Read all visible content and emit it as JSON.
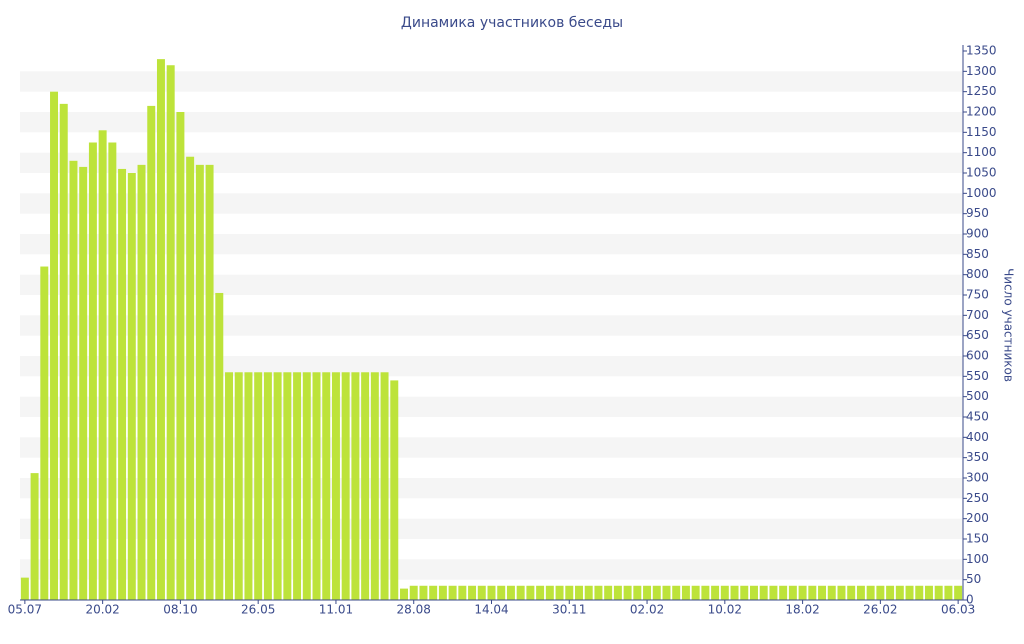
{
  "chart_data": {
    "type": "bar",
    "title": "Динамика участников беседы",
    "y_axis_label": "Число участников",
    "color": "#bde33a",
    "grid": "bands",
    "band_color": "#f5f5f5",
    "y_axis_side": "right",
    "categories": [
      "05.07",
      null,
      null,
      null,
      null,
      null,
      null,
      null,
      "20.02",
      null,
      null,
      null,
      null,
      null,
      null,
      null,
      "08.10",
      null,
      null,
      null,
      null,
      null,
      null,
      null,
      "26.05",
      null,
      null,
      null,
      null,
      null,
      null,
      null,
      "11.01",
      null,
      null,
      null,
      null,
      null,
      null,
      null,
      "28.08",
      null,
      null,
      null,
      null,
      null,
      null,
      null,
      "14.04",
      null,
      null,
      null,
      null,
      null,
      null,
      null,
      "30.11",
      null,
      null,
      null,
      null,
      null,
      null,
      null,
      "02.02",
      null,
      null,
      null,
      null,
      null,
      null,
      null,
      "10.02",
      null,
      null,
      null,
      null,
      null,
      null,
      null,
      "18.02",
      null,
      null,
      null,
      null,
      null,
      null,
      null,
      "26.02",
      null,
      null,
      null,
      null,
      null,
      null,
      null,
      "06.03"
    ],
    "values": [
      55,
      312,
      820,
      1250,
      1220,
      1080,
      1065,
      1125,
      1155,
      1125,
      1060,
      1050,
      1070,
      1215,
      1330,
      1315,
      1200,
      1090,
      1070,
      1070,
      755,
      560,
      560,
      560,
      560,
      560,
      560,
      560,
      560,
      560,
      560,
      560,
      560,
      560,
      560,
      560,
      560,
      560,
      540,
      28,
      35,
      35,
      35,
      35,
      35,
      35,
      35,
      35,
      35,
      35,
      35,
      35,
      35,
      35,
      35,
      35,
      35,
      35,
      35,
      35,
      35,
      35,
      35,
      35,
      35,
      35,
      35,
      35,
      35,
      35,
      35,
      35,
      35,
      35,
      35,
      35,
      35,
      35,
      35,
      35,
      35,
      35,
      35,
      35,
      35,
      35,
      35,
      35,
      35,
      35,
      35,
      35,
      35,
      35,
      35,
      35,
      35
    ],
    "ylim": [
      0,
      1350
    ],
    "yticks": [
      0,
      50,
      100,
      150,
      200,
      250,
      300,
      350,
      400,
      450,
      500,
      550,
      600,
      650,
      700,
      750,
      800,
      850,
      900,
      950,
      1000,
      1050,
      1100,
      1150,
      1200,
      1250,
      1300,
      1350
    ]
  }
}
